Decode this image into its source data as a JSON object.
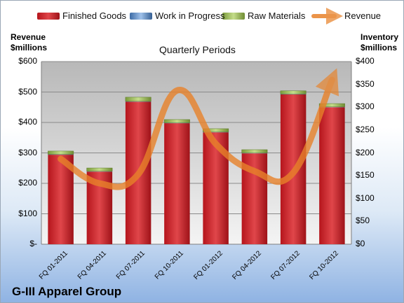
{
  "chart_data": {
    "type": "bar",
    "title": "Quarterly Periods",
    "footer": "G-III Apparel Group",
    "categories": [
      "FQ 01-2011",
      "FQ 04-2011",
      "FQ 07-2011",
      "FQ 10-2011",
      "FQ 01-2012",
      "FQ 04-2012",
      "FQ 07-2012",
      "FQ 10-2012"
    ],
    "left_axis": {
      "label_line1": "Revenue",
      "label_line2": "$millions",
      "ylim": [
        0,
        600
      ],
      "ticks": [
        "$-",
        "$100",
        "$200",
        "$300",
        "$400",
        "$500",
        "$600"
      ]
    },
    "right_axis": {
      "label_line1": "Inventory",
      "label_line2": "$millions",
      "ylim": [
        0,
        400
      ],
      "ticks": [
        "$0",
        "$50",
        "$100",
        "$150",
        "$200",
        "$250",
        "$300",
        "$350",
        "$400"
      ]
    },
    "legend": [
      {
        "name": "Finished Goods",
        "color": "#c0282e"
      },
      {
        "name": "Work in Progress",
        "color": "#4f81bd"
      },
      {
        "name": "Raw Materials",
        "color": "#9bbb59"
      },
      {
        "name": "Revenue",
        "color": "#e8822a"
      }
    ],
    "series": [
      {
        "name": "Finished Goods",
        "axis": "right",
        "stacked": true,
        "values": [
          196,
          159,
          312,
          265,
          245,
          199,
          328,
          300
        ]
      },
      {
        "name": "Work in Progress",
        "axis": "right",
        "stacked": true,
        "values": [
          1,
          1,
          1,
          1,
          1,
          1,
          1,
          1
        ]
      },
      {
        "name": "Raw Materials",
        "axis": "right",
        "stacked": true,
        "values": [
          7,
          7,
          9,
          7,
          7,
          7,
          7,
          7
        ]
      },
      {
        "name": "Revenue",
        "axis": "left",
        "type": "line",
        "values": [
          280,
          200,
          230,
          505,
          330,
          240,
          235,
          540
        ]
      }
    ],
    "grid": true,
    "legend_position": "top"
  }
}
